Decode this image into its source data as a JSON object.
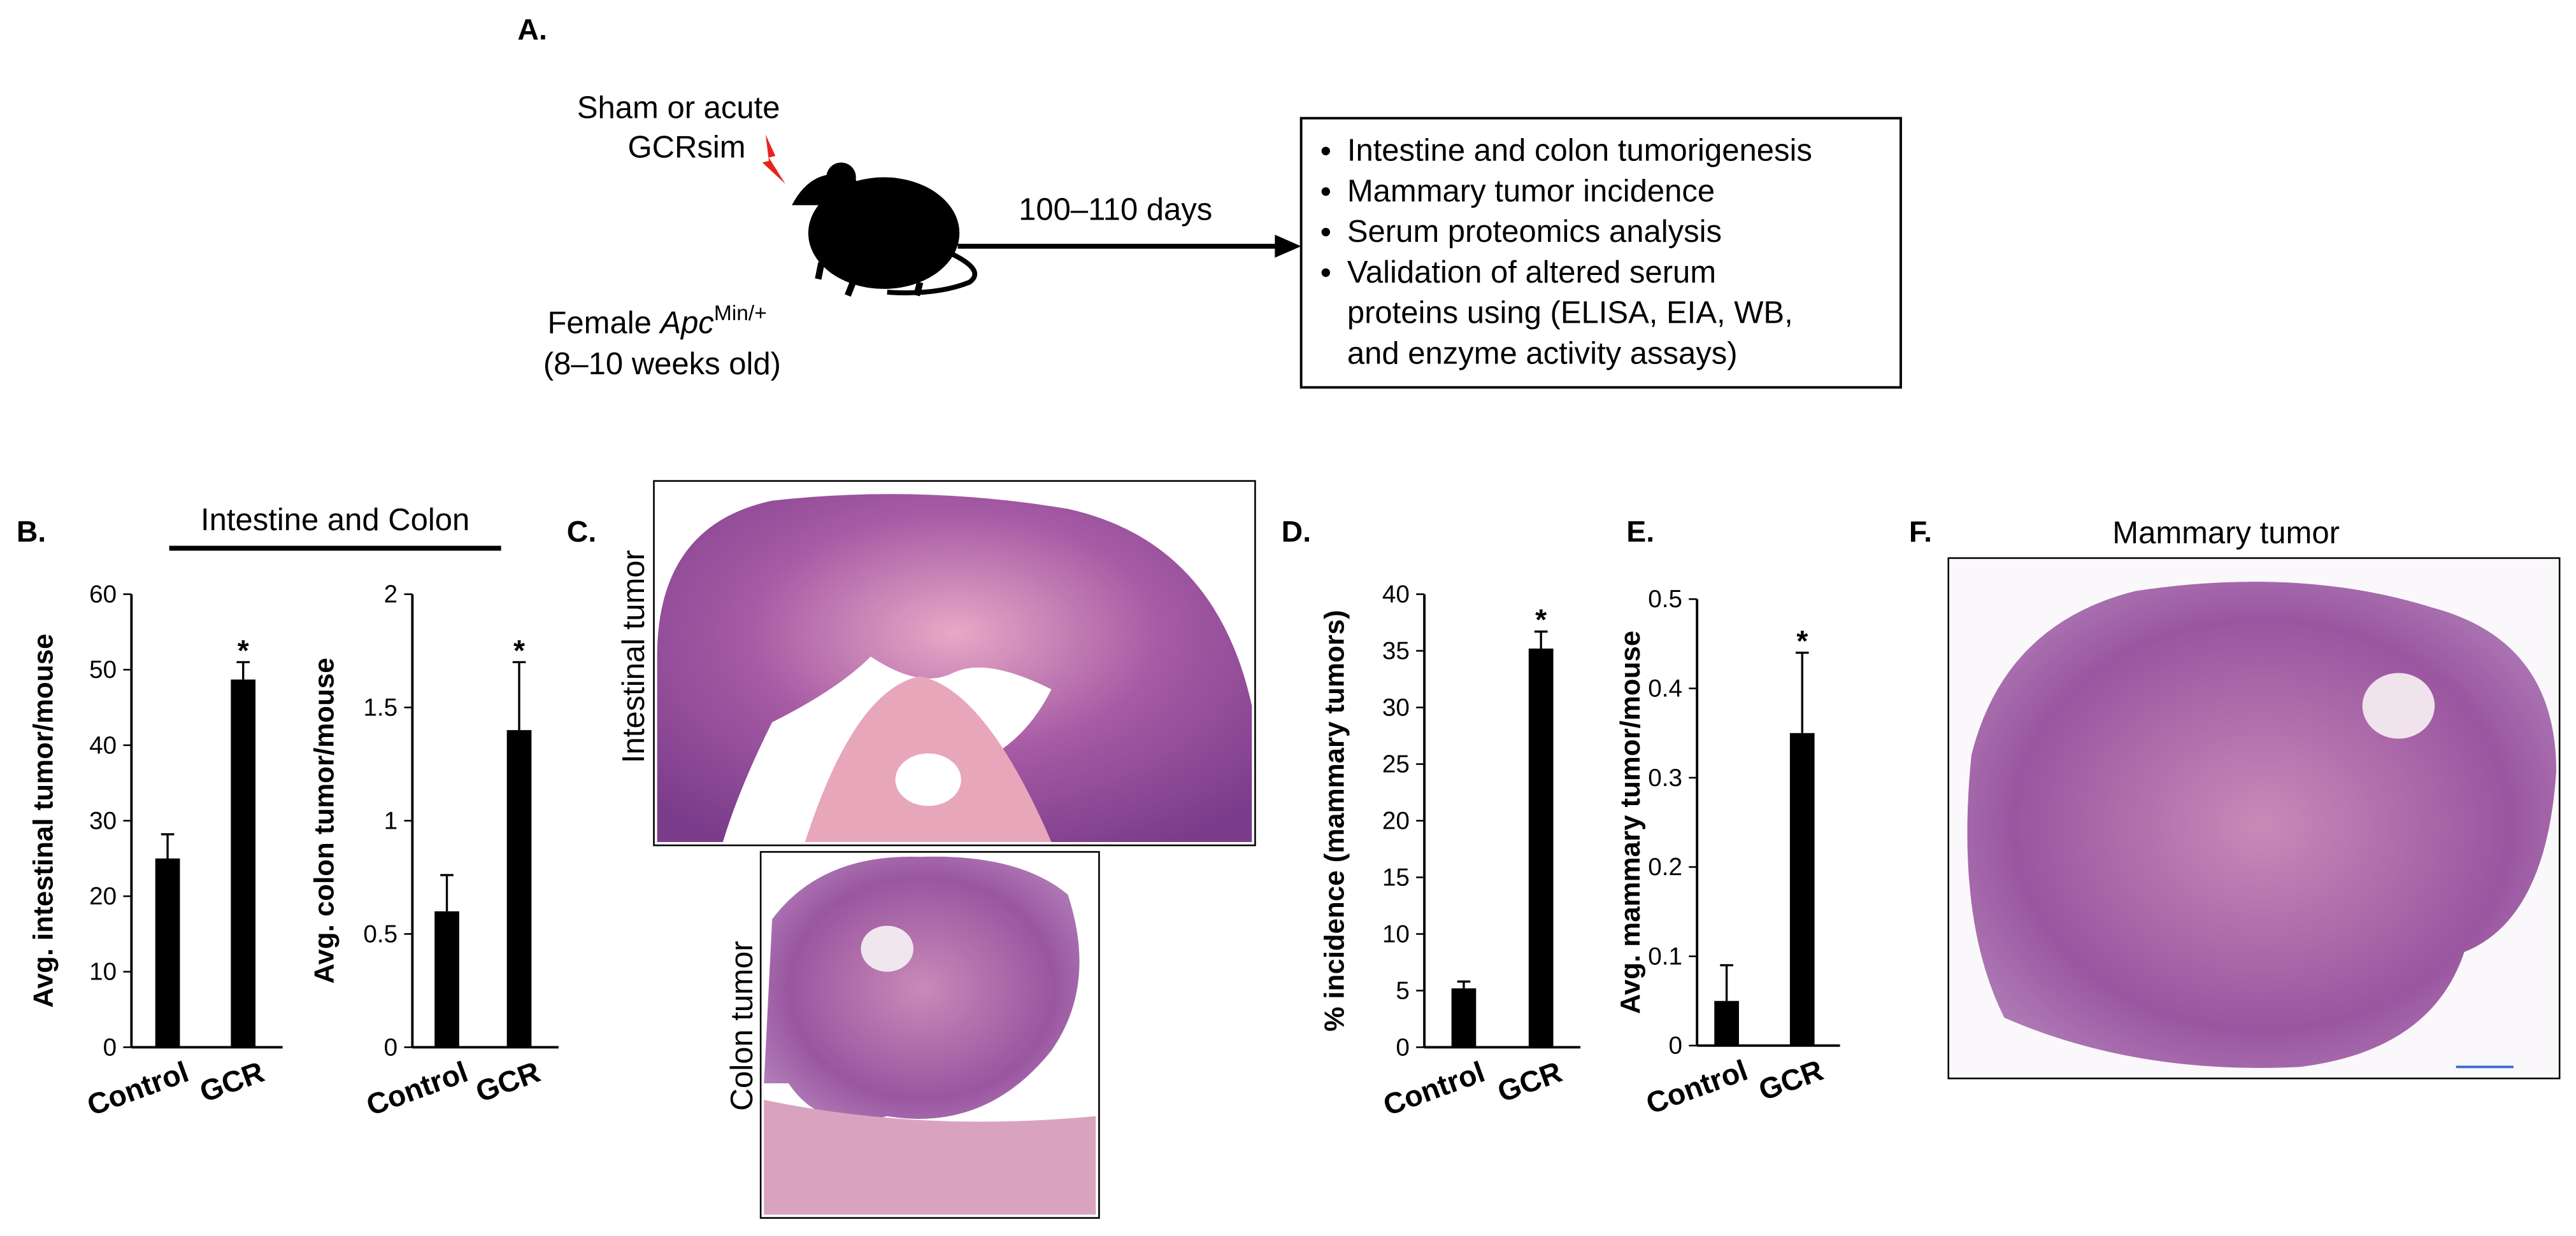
{
  "panel_a": {
    "label": "A.",
    "treatment": [
      "Sham or acute",
      "GCRsim"
    ],
    "mouse": {
      "prefix": "Female",
      "gene": "Apc",
      "superscript": "Min/+",
      "age": "(8–10 weeks old)"
    },
    "duration": "100–110 days",
    "bullets": [
      [
        "Intestine and colon tumorigenesis"
      ],
      [
        "Mammary tumor incidence"
      ],
      [
        "Serum proteomics analysis"
      ],
      [
        "Validation of altered serum",
        "proteins using (ELISA, EIA, WB,",
        "and enzyme activity assays)"
      ]
    ]
  },
  "panel_b": {
    "label": "B.",
    "header": "Intestine and Colon"
  },
  "panel_c": {
    "label": "C.",
    "images": [
      "Intestinal tumor",
      "Colon tumor"
    ]
  },
  "panel_d": {
    "label": "D."
  },
  "panel_e": {
    "label": "E."
  },
  "panel_f": {
    "label": "F.",
    "title": "Mammary tumor"
  },
  "chart_data": [
    {
      "type": "bar",
      "y_label": "Avg. intestinal tumor/mouse",
      "categories": [
        "Control",
        "GCR"
      ],
      "values": [
        25,
        48.7
      ],
      "errors": [
        3.2,
        2.3
      ],
      "significance": [
        null,
        "*"
      ],
      "color": "#000000",
      "ylim": [
        0,
        60
      ],
      "yticks": [
        0,
        10,
        20,
        30,
        40,
        50,
        60
      ]
    },
    {
      "type": "bar",
      "y_label": "Avg. colon tumor/mouse",
      "categories": [
        "Control",
        "GCR"
      ],
      "values": [
        0.6,
        1.4
      ],
      "errors": [
        0.16,
        0.3
      ],
      "significance": [
        null,
        "*"
      ],
      "color": "#000000",
      "ylim": [
        0,
        2
      ],
      "yticks": [
        0,
        0.5,
        1,
        1.5,
        2
      ]
    },
    {
      "type": "bar",
      "y_label": "% incidence (mammary tumors)",
      "categories": [
        "Control",
        "GCR"
      ],
      "values": [
        5.2,
        35.2
      ],
      "errors": [
        0.6,
        1.5
      ],
      "significance": [
        null,
        "*"
      ],
      "color": "#000000",
      "ylim": [
        0,
        40
      ],
      "yticks": [
        0,
        5,
        10,
        15,
        20,
        25,
        30,
        35,
        40
      ]
    },
    {
      "type": "bar",
      "y_label": "Avg. mammary tumor/mouse",
      "categories": [
        "Control",
        "GCR"
      ],
      "values": [
        0.05,
        0.35
      ],
      "errors": [
        0.04,
        0.09
      ],
      "significance": [
        null,
        "*"
      ],
      "color": "#000000",
      "ylim": [
        0,
        0.5
      ],
      "yticks": [
        0,
        0.1,
        0.2,
        0.3,
        0.4,
        0.5
      ]
    }
  ]
}
